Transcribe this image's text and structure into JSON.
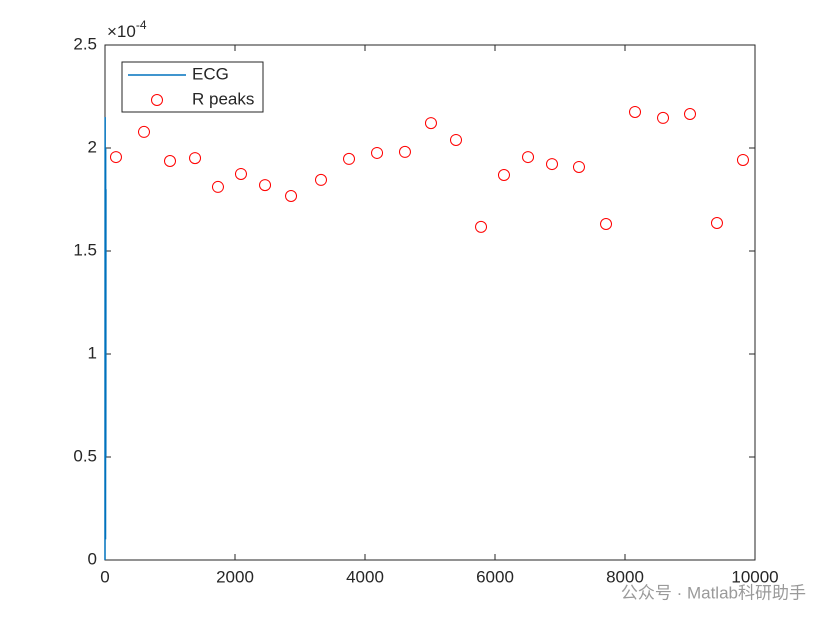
{
  "chart_data": {
    "type": "scatter",
    "xlim": [
      0,
      10000
    ],
    "xticks": [
      0,
      2000,
      4000,
      6000,
      8000,
      10000
    ],
    "ylim": [
      0,
      2.5
    ],
    "yticks": [
      0,
      0.5,
      1,
      1.5,
      2,
      2.5
    ],
    "y_multiplier": {
      "base": "×10",
      "exponent": "-4"
    },
    "grid": false,
    "legend": "top-left",
    "series": [
      {
        "name": "ECG",
        "type": "line",
        "color": "#0072bd",
        "x": [
          0,
          2,
          4,
          6,
          8,
          10,
          12,
          14
        ],
        "values": [
          0,
          2.15,
          0.3,
          1.9,
          0.1,
          2.0,
          0.5,
          1.8
        ]
      },
      {
        "name": "R peaks",
        "type": "scatter",
        "color": "#ff0000",
        "x": [
          169,
          600,
          1000,
          1385,
          1738,
          2092,
          2462,
          2862,
          3323,
          3754,
          4185,
          4615,
          5015,
          5400,
          5785,
          6138,
          6508,
          6877,
          7292,
          7708,
          8154,
          8585,
          9000,
          9415,
          9815
        ],
        "values": [
          1.956,
          2.078,
          1.937,
          1.951,
          1.811,
          1.874,
          1.82,
          1.767,
          1.845,
          1.947,
          1.976,
          1.981,
          2.121,
          2.039,
          1.617,
          1.869,
          1.956,
          1.922,
          1.908,
          1.631,
          2.175,
          2.146,
          2.165,
          1.636,
          1.942
        ]
      }
    ],
    "watermark": "公众号 · Matlab科研助手"
  }
}
